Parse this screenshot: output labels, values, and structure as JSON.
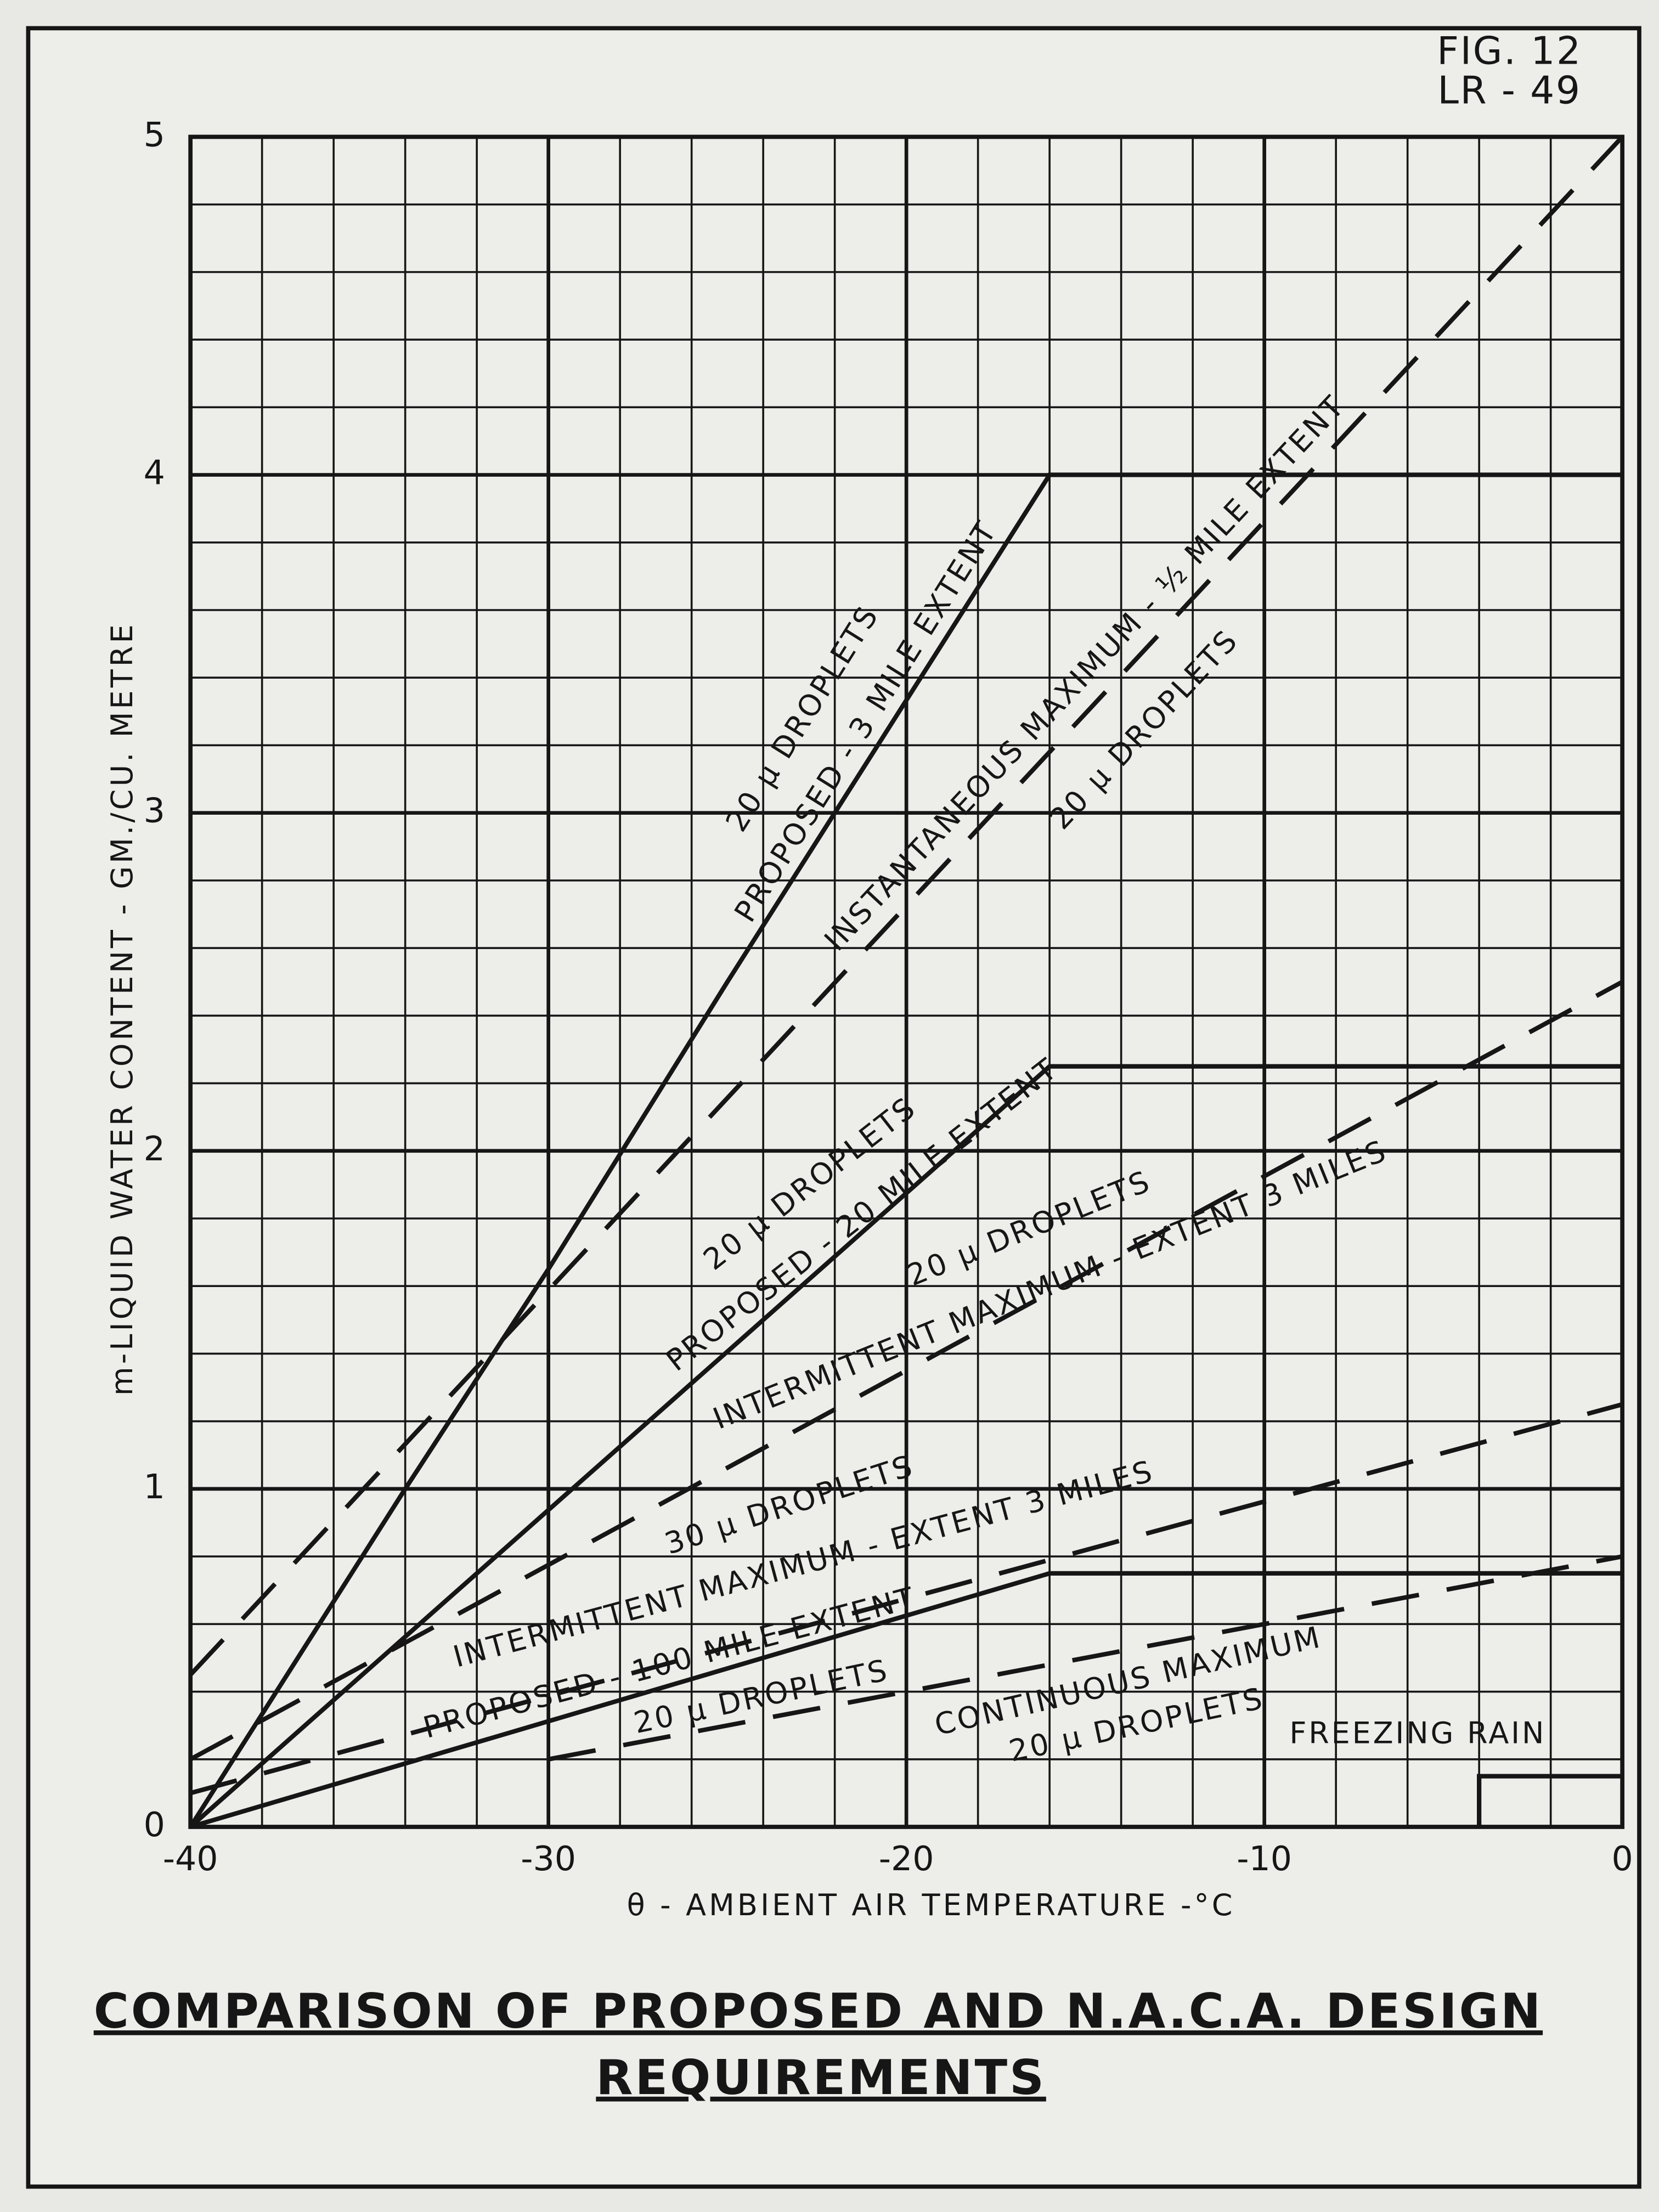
{
  "chart_data": {
    "type": "line",
    "fig_label": [
      "FIG. 12",
      "LR - 49"
    ],
    "title": [
      "COMPARISON OF PROPOSED AND N.A.C.A. DESIGN",
      "REQUIREMENTS"
    ],
    "x_label": "θ - AMBIENT AIR TEMPERATURE -°C",
    "y_label": "m-LIQUID WATER CONTENT - GM./CU. METRE",
    "xlim": [
      -40,
      0
    ],
    "ylim": [
      0,
      5
    ],
    "xticks": [
      -40,
      -30,
      -20,
      -10,
      0
    ],
    "yticks": [
      0,
      1,
      2,
      3,
      4,
      5
    ],
    "grid": true,
    "minor_grid": {
      "x": 2,
      "y": 0.2
    },
    "color": "#161616",
    "series": [
      {
        "x": [
          -40,
          -34,
          -30,
          -25,
          -16,
          0
        ],
        "values": [
          0,
          1,
          1.65,
          2.5,
          4,
          4
        ],
        "line_style": "solid"
      },
      {
        "x": [
          -40,
          -16,
          0
        ],
        "values": [
          0,
          2.25,
          2.25
        ],
        "line_style": "solid"
      },
      {
        "x": [
          -40,
          -16,
          0
        ],
        "values": [
          0,
          0.75,
          0.75
        ],
        "line_style": "solid"
      },
      {
        "x": [
          -4,
          -4,
          0
        ],
        "values": [
          0,
          0.15,
          0.15
        ],
        "line_style": "solid"
      },
      {
        "x": [
          -40,
          0
        ],
        "values": [
          0.45,
          5
        ],
        "line_style": "dashed"
      },
      {
        "x": [
          -40,
          0
        ],
        "values": [
          0.2,
          2.5
        ],
        "line_style": "dashed"
      },
      {
        "x": [
          -40,
          0
        ],
        "values": [
          0.1,
          1.25
        ],
        "line_style": "dashed"
      },
      {
        "x": [
          -30,
          0
        ],
        "values": [
          0.2,
          0.8
        ],
        "line_style": "dashed"
      }
    ],
    "annotations": [
      "20 μ DROPLETS",
      "PROPOSED - 3 MILE EXTENT",
      "INSTANTANEOUS MAXIMUM - ½ MILE EXTENT",
      "20 μ DROPLETS",
      "20 μ DROPLETS",
      "PROPOSED - 20 MILE EXTENT",
      "20 μ DROPLETS",
      "INTERMITTENT MAXIMUM - EXTENT 3 MILES",
      "30 μ DROPLETS",
      "INTERMITTENT MAXIMUM - EXTENT 3 MILES",
      "PROPOSED - 100 MILE EXTENT",
      "20 μ DROPLETS",
      "CONTINUOUS MAXIMUM",
      "20 μ DROPLETS",
      "FREEZING RAIN"
    ]
  }
}
